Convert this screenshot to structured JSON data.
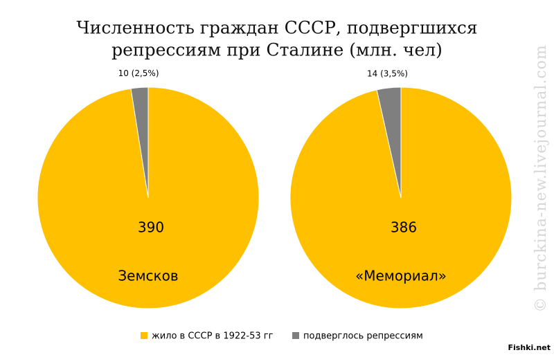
{
  "title": [
    "Численность граждан СССР, подвергшихся",
    "репрессиям при Сталине (млн. чел)"
  ],
  "watermarks": [
    "© burckina-new.livejournal.com",
    "Fishki.net"
  ],
  "chart_data": [
    {
      "type": "pie",
      "label": "Земсков",
      "categories": [
        "жило в СССР в 1922-53 гг",
        "подверглось репрессиям"
      ],
      "values": [
        390,
        10
      ],
      "value_labels": [
        "390",
        "10 (2,5%)"
      ],
      "colors": [
        "#ffc000",
        "#7f7f7f"
      ]
    },
    {
      "type": "pie",
      "label": "«Мемориал»",
      "categories": [
        "жило в СССР в 1922-53 гг",
        "подверглось репрессиям"
      ],
      "values": [
        386,
        14
      ],
      "value_labels": [
        "386",
        "14 (3,5%)"
      ],
      "colors": [
        "#ffc000",
        "#7f7f7f"
      ]
    }
  ]
}
